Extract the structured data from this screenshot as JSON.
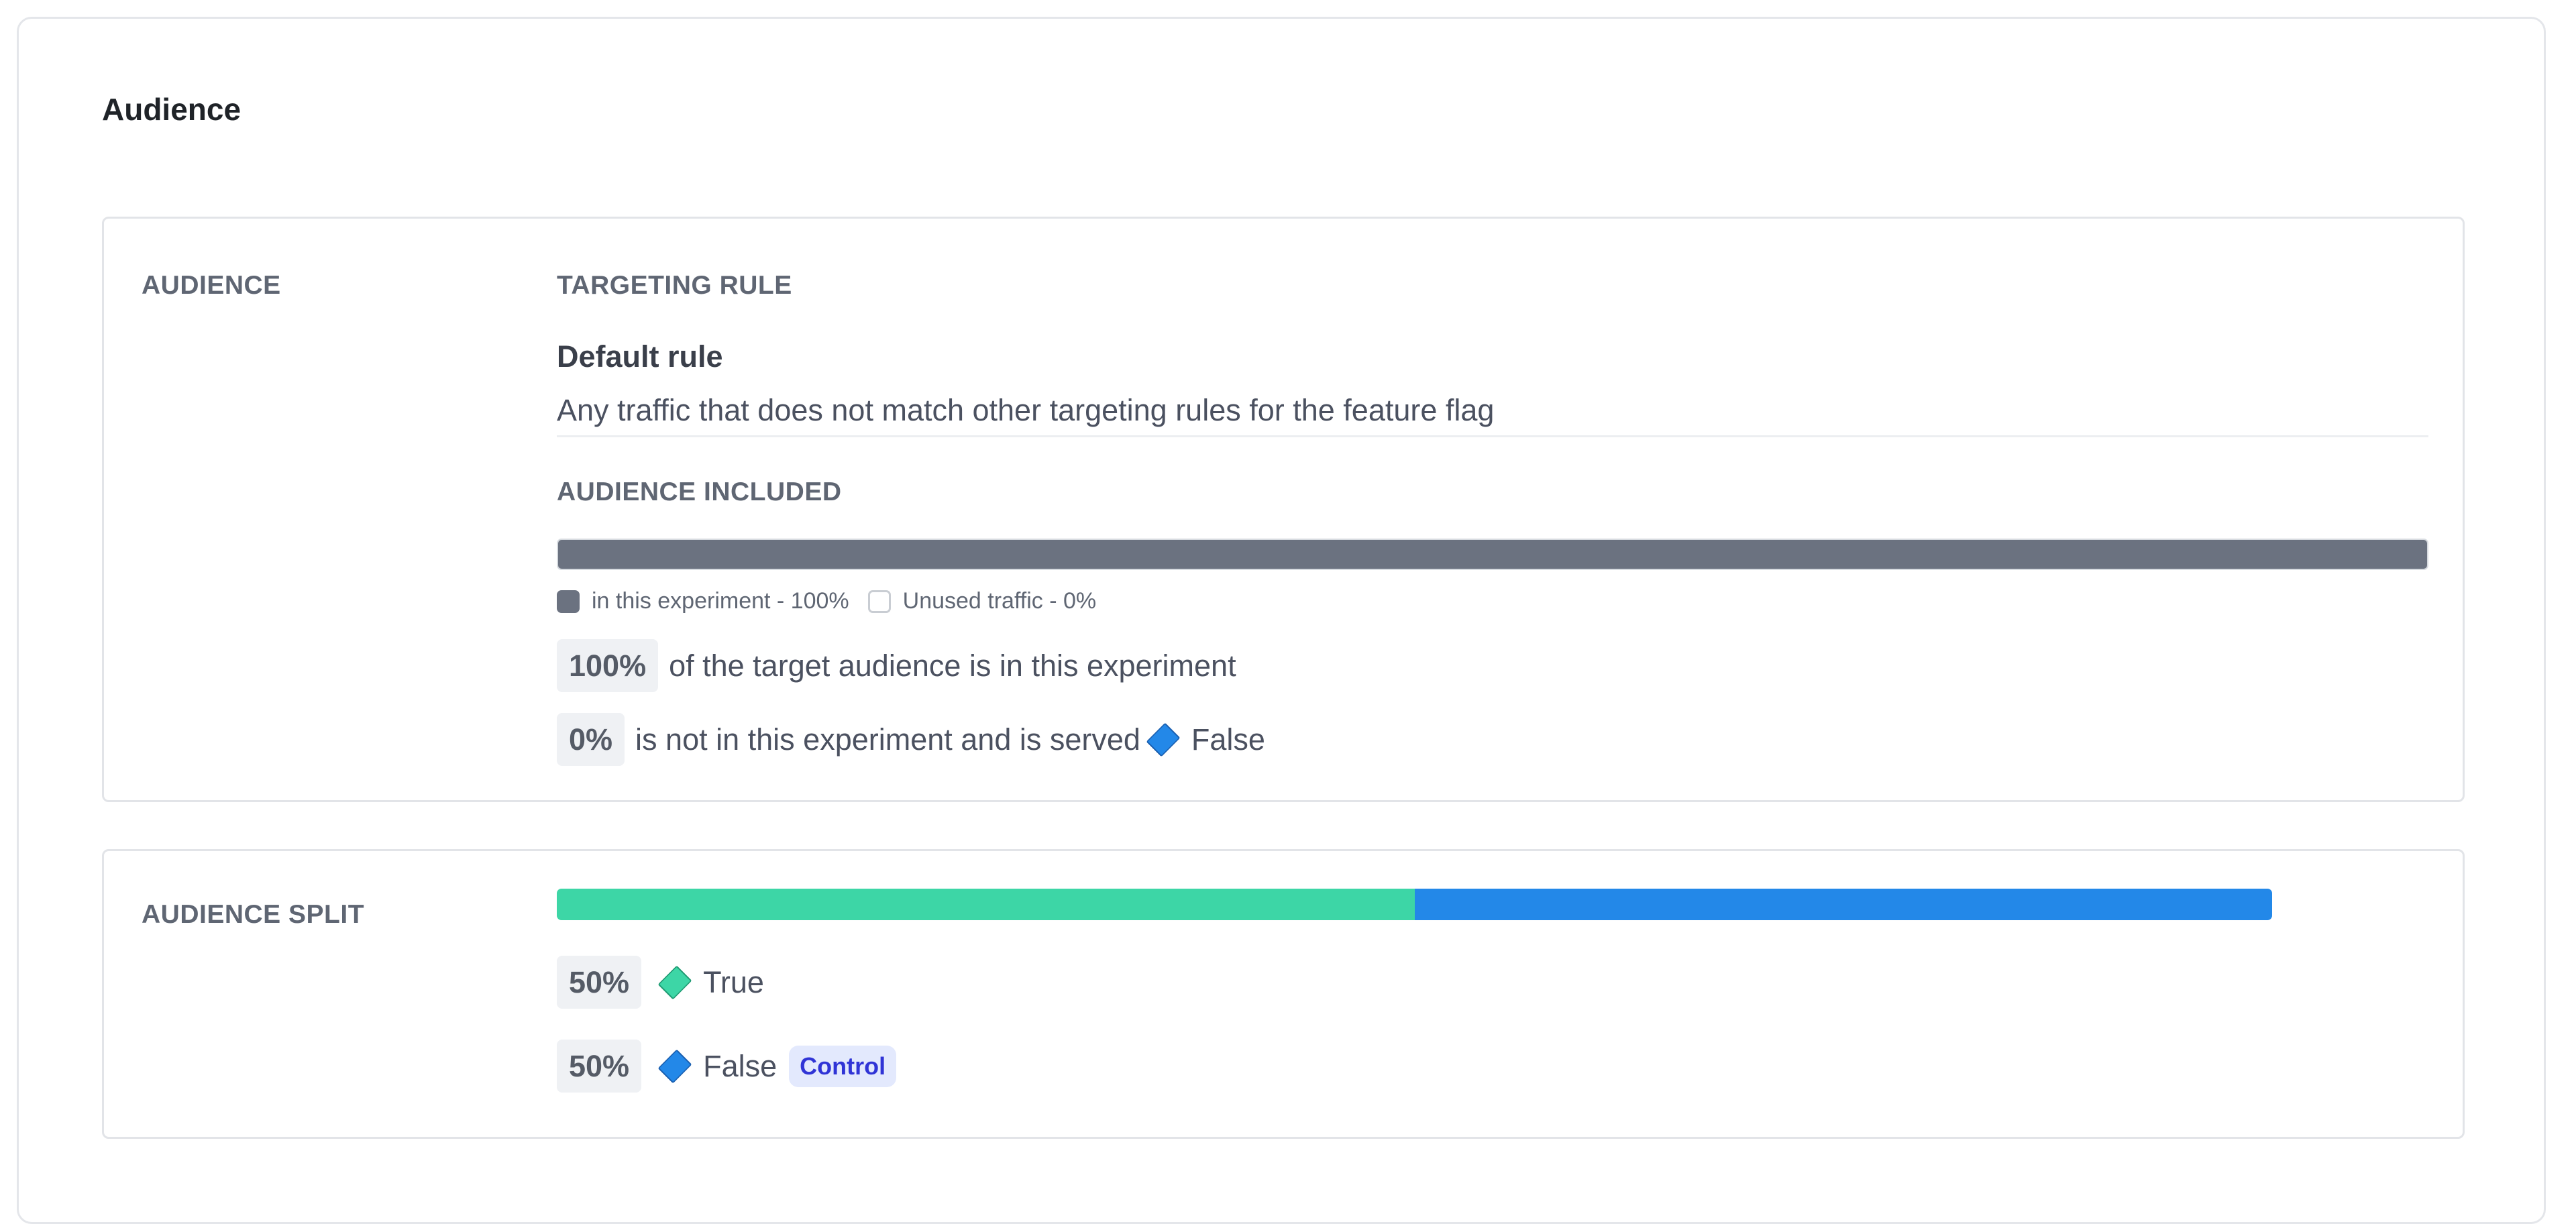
{
  "section": {
    "title": "Audience"
  },
  "audience": {
    "label": "AUDIENCE",
    "targeting_rule_label": "TARGETING RULE",
    "rule_name": "Default rule",
    "rule_description": "Any traffic that does not match other targeting rules for the feature flag",
    "included_label": "AUDIENCE INCLUDED",
    "included_percent": 100,
    "legend": [
      {
        "label": "in this experiment - 100%",
        "color": "#6b7280"
      },
      {
        "label": "Unused traffic - 0%",
        "color": "#ffffff"
      }
    ],
    "summary": [
      {
        "value": "100%",
        "text": "of the target audience is in this experiment"
      },
      {
        "value": "0%",
        "text": "is not in this experiment and is served",
        "variation": "False",
        "icon": "diamond-icon",
        "color": "#2388e8"
      }
    ]
  },
  "split": {
    "label": "AUDIENCE SPLIT",
    "variations": [
      {
        "value": "50%",
        "percent": 50,
        "name": "True",
        "icon": "diamond-icon",
        "color": "#3dd6a6"
      },
      {
        "value": "50%",
        "percent": 50,
        "name": "False",
        "icon": "diamond-icon",
        "color": "#2388e8",
        "badge": "Control"
      }
    ]
  }
}
